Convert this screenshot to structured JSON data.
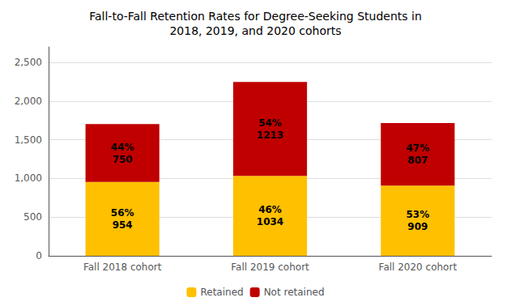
{
  "chart_data": {
    "type": "bar",
    "title": "Fall-to-Fall Retention Rates for Degree-Seeking Students in\n2018, 2019, and 2020 cohorts",
    "categories": [
      "Fall 2018 cohort",
      "Fall 2019 cohort",
      "Fall 2020 cohort"
    ],
    "stacked": true,
    "data_labels": true,
    "grid": true,
    "legend": "bottom",
    "series": [
      {
        "name": "Retained",
        "color": "#FFC000",
        "values": [
          954,
          1034,
          909
        ],
        "value_labels": [
          "56%\n954",
          "46%\n1034",
          "53%\n909"
        ]
      },
      {
        "name": "Not retained",
        "color": "#C00000",
        "values": [
          750,
          1213,
          807
        ],
        "value_labels": [
          "44%\n750",
          "54%\n1213",
          "47%\n807"
        ]
      }
    ],
    "ylim": [
      0,
      2700
    ],
    "yticks": [
      0,
      500,
      {
        "value": 1000,
        "label": "1,000"
      },
      {
        "value": 1500,
        "label": "1,500"
      },
      {
        "value": 2000,
        "label": "2,000"
      },
      {
        "value": 2500,
        "label": "2,500"
      }
    ]
  }
}
